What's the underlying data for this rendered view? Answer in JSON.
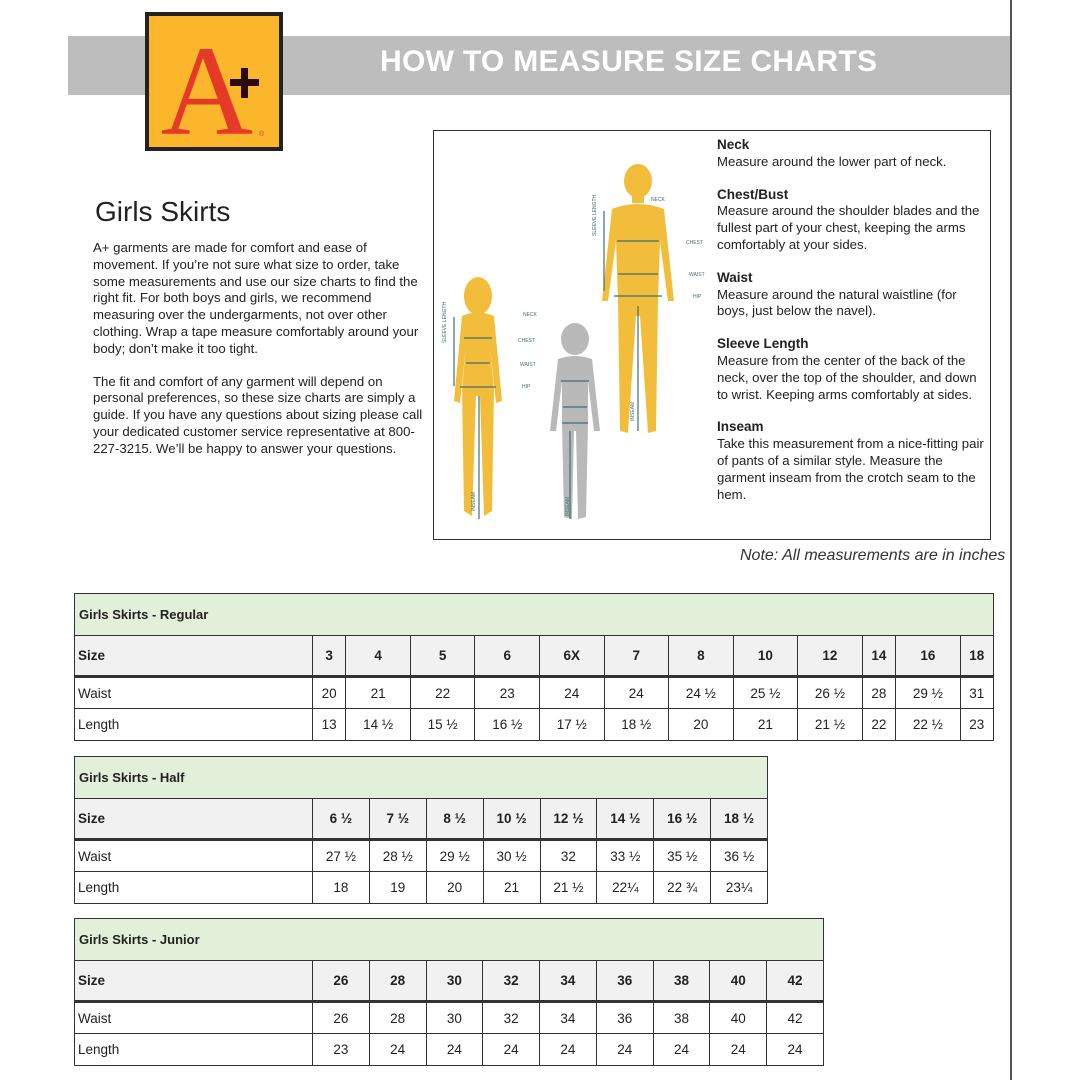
{
  "header": {
    "title": "HOW TO MEASURE SIZE CHARTS",
    "logo_text": "A+"
  },
  "page_title": "Girls Skirts",
  "intro": [
    "A+ garments are made for comfort and ease of movement. If you’re not sure what size to order, take some measurements and use our size charts to find the right fit. For both boys and girls, we recommend measuring over the undergarments, not over other clothing. Wrap a tape measure comfortably around your body; don’t make it too tight.",
    "The fit and comfort of any garment will depend on personal preferences, so these size charts are simply a guide. If you have any questions about sizing please call your dedicated customer service representative at 800-227-3215. We’ll be happy to answer your questions."
  ],
  "diagram_labels": {
    "neck": "NECK",
    "chest": "CHEST",
    "waist": "WAIST",
    "hip": "HIP",
    "sleeve": "SLEEVE LENGTH",
    "inseam": "INSEAM"
  },
  "colors": {
    "figure_adult": "#f2bd3a",
    "figure_child": "#b9b9b9",
    "measure_line": "#3f6f73",
    "table_title_bg": "#e2efd9"
  },
  "definitions": [
    {
      "term": "Neck",
      "text": "Measure around the lower part of neck."
    },
    {
      "term": "Chest/Bust",
      "text": "Measure around the shoulder blades and the fullest part of your chest, keeping the arms comfortably at your sides."
    },
    {
      "term": "Waist",
      "text": "Measure around the natural waistline (for boys, just below the navel)."
    },
    {
      "term": "Sleeve Length",
      "text": "Measure from the center of the back of the neck, over the top of the shoulder, and down to wrist. Keeping arms comfortably at sides."
    },
    {
      "term": "Inseam",
      "text": "Take this measurement from a nice-fitting pair of pants of a similar style. Measure the garment inseam from the crotch seam to the hem."
    }
  ],
  "note": "Note: All measurements are in inches",
  "tables": [
    {
      "title": "Girls Skirts - Regular",
      "rows": [
        {
          "label": "Size",
          "values": [
            "3",
            "4",
            "5",
            "6",
            "6X",
            "7",
            "8",
            "10",
            "12",
            "14",
            "16",
            "18"
          ]
        },
        {
          "label": "Waist",
          "values": [
            "20",
            "21",
            "22",
            "23",
            "24",
            "24",
            "24 ½",
            "25 ½",
            "26 ½",
            "28",
            "29 ½",
            "31"
          ]
        },
        {
          "label": "Length",
          "values": [
            "13",
            "14 ½",
            "15 ½",
            "16 ½",
            "17 ½",
            "18 ½",
            "20",
            "21",
            "21 ½",
            "22",
            "22 ½",
            "23"
          ]
        }
      ]
    },
    {
      "title": "Girls Skirts - Half",
      "rows": [
        {
          "label": "Size",
          "values": [
            "6 ½",
            "7 ½",
            "8 ½",
            "10 ½",
            "12 ½",
            "14 ½",
            "16 ½",
            "18 ½"
          ]
        },
        {
          "label": "Waist",
          "values": [
            "27 ½",
            "28 ½",
            "29 ½",
            "30 ½",
            "32",
            "33 ½",
            "35 ½",
            "36 ½"
          ]
        },
        {
          "label": "Length",
          "values": [
            "18",
            "19",
            "20",
            "21",
            "21 ½",
            "22¼",
            "22 ¾",
            "23¼"
          ]
        }
      ]
    },
    {
      "title": "Girls Skirts - Junior",
      "rows": [
        {
          "label": "Size",
          "values": [
            "26",
            "28",
            "30",
            "32",
            "34",
            "36",
            "38",
            "40",
            "42"
          ]
        },
        {
          "label": "Waist",
          "values": [
            "26",
            "28",
            "30",
            "32",
            "34",
            "36",
            "38",
            "40",
            "42"
          ]
        },
        {
          "label": "Length",
          "values": [
            "23",
            "24",
            "24",
            "24",
            "24",
            "24",
            "24",
            "24",
            "24"
          ]
        }
      ]
    }
  ]
}
